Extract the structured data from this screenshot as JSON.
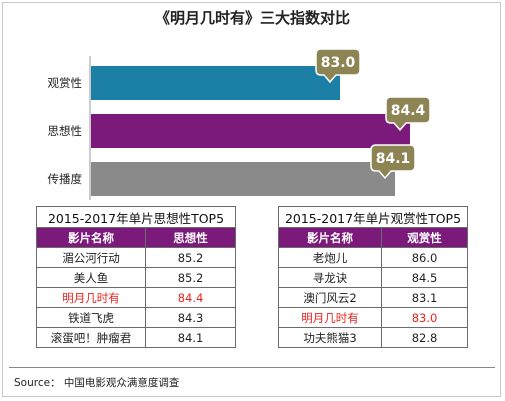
{
  "title": "《明月几时有》三大指数对比",
  "chart_data": {
    "type": "bar",
    "orientation": "horizontal",
    "categories": [
      "观赏性",
      "思想性",
      "传播度"
    ],
    "values": [
      83.0,
      84.4,
      84.1
    ],
    "value_labels": [
      "83.0",
      "84.4",
      "84.1"
    ],
    "colors": [
      "#1c7fa6",
      "#7c1a7c",
      "#8a8a8a"
    ],
    "callout_color": "#8d8454",
    "xlim": [
      78,
      85
    ]
  },
  "tables": [
    {
      "caption": "2015-2017年单片思想性TOP5",
      "headers": [
        "影片名称",
        "思想性"
      ],
      "rows": [
        {
          "name": "湄公河行动",
          "value": "85.2",
          "highlight": false
        },
        {
          "name": "美人鱼",
          "value": "85.2",
          "highlight": false
        },
        {
          "name": "明月几时有",
          "value": "84.4",
          "highlight": true
        },
        {
          "name": "铁道飞虎",
          "value": "84.3",
          "highlight": false
        },
        {
          "name": "滚蛋吧！肿瘤君",
          "value": "84.1",
          "highlight": false
        }
      ]
    },
    {
      "caption": "2015-2017年单片观赏性TOP5",
      "headers": [
        "影片名称",
        "观赏性"
      ],
      "rows": [
        {
          "name": "老炮儿",
          "value": "86.0",
          "highlight": false
        },
        {
          "name": "寻龙诀",
          "value": "84.5",
          "highlight": false
        },
        {
          "name": "澳门风云2",
          "value": "83.1",
          "highlight": false
        },
        {
          "name": "明月几时有",
          "value": "83.0",
          "highlight": true
        },
        {
          "name": "功夫熊猫3",
          "value": "82.8",
          "highlight": false
        }
      ]
    }
  ],
  "source": "Source： 中国电影观众满意度调查"
}
